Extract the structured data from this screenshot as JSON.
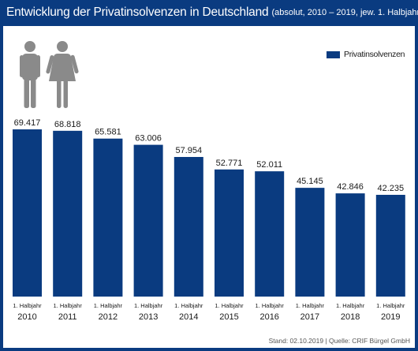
{
  "title": {
    "main": "Entwicklung der Privatinsolvenzen in Deutschland",
    "sub": "(absolut, 2010 – 2019, jew. 1. Halbjahr)"
  },
  "legend": {
    "label": "Privatinsolvenzen"
  },
  "footer": {
    "source": "Stand: 02.10.2019 | Quelle: CRIF Bürgel GmbH"
  },
  "icons": [
    "male-person-icon",
    "female-person-icon"
  ],
  "colors": {
    "bar": "#0a3b80",
    "icon": "#8a8a8a",
    "background": "#ffffff"
  },
  "chart_data": {
    "type": "bar",
    "categories": [
      "2010",
      "2011",
      "2012",
      "2013",
      "2014",
      "2015",
      "2016",
      "2017",
      "2018",
      "2019"
    ],
    "category_prefix": "1. Halbjahr",
    "series": [
      {
        "name": "Privatinsolvenzen",
        "values": [
          69417,
          68818,
          65581,
          63006,
          57954,
          52771,
          52011,
          45145,
          42846,
          42235
        ],
        "labels": [
          "69.417",
          "68.818",
          "65.581",
          "63.006",
          "57.954",
          "52.771",
          "52.011",
          "45.145",
          "42.846",
          "42.235"
        ]
      }
    ],
    "ylim": [
      0,
      69417
    ],
    "grid": false,
    "legend_position": "top-right"
  }
}
